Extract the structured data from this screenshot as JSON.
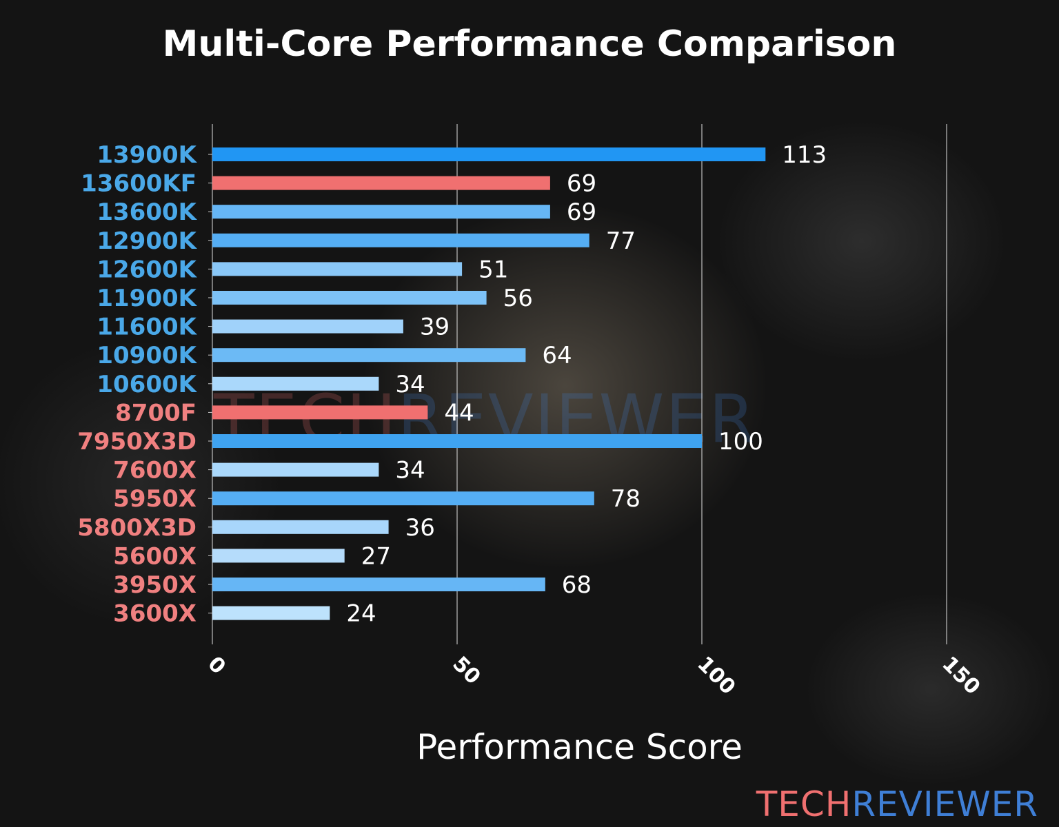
{
  "chart_data": {
    "type": "bar",
    "orientation": "horizontal",
    "title": "Multi-Core Performance Comparison",
    "xlabel": "Performance Score",
    "ylabel": "",
    "xlim": [
      0,
      150
    ],
    "xticks": [
      0,
      50,
      100,
      150
    ],
    "grid": "vertical",
    "categories": [
      "13900K",
      "13600KF",
      "13600K",
      "12900K",
      "12600K",
      "11900K",
      "11600K",
      "10900K",
      "10600K",
      "8700F",
      "7950X3D",
      "7600X",
      "5950X",
      "5800X3D",
      "5600X",
      "3950X",
      "3600X"
    ],
    "values": [
      113,
      69,
      69,
      77,
      51,
      56,
      39,
      64,
      34,
      44,
      100,
      34,
      78,
      36,
      27,
      68,
      24
    ],
    "bar_colors": [
      "#2196f3",
      "#f07070",
      "#66b6f5",
      "#55aef4",
      "#8ac8f8",
      "#7dc2f7",
      "#a0d2fa",
      "#6cbaf5",
      "#aad8fb",
      "#f07070",
      "#3fa3f0",
      "#aad8fb",
      "#55aef4",
      "#a8d6fb",
      "#b5dcfb",
      "#66b6f5",
      "#bde2fc"
    ],
    "label_colors": [
      "#4aa8e8",
      "#4aa8e8",
      "#4aa8e8",
      "#4aa8e8",
      "#4aa8e8",
      "#4aa8e8",
      "#4aa8e8",
      "#4aa8e8",
      "#4aa8e8",
      "#f08080",
      "#f08080",
      "#f08080",
      "#f08080",
      "#f08080",
      "#f08080",
      "#f08080",
      "#f08080"
    ]
  },
  "logo": {
    "part1": "TECH",
    "part2": "REVIEWER",
    "color1": "#f07070",
    "color2": "#3f7fd6"
  }
}
